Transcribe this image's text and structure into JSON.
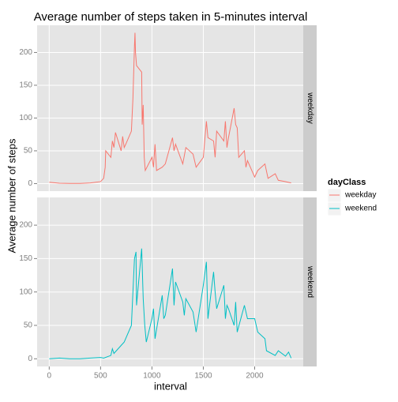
{
  "chart_data": {
    "type": "line",
    "title": "Average number of steps taken in 5-minutes interval",
    "x_label": "interval",
    "y_label": "Average number of steps",
    "legend_title": "dayClass",
    "xlim": [
      -117.75,
      2472.75
    ],
    "xticks": [
      0,
      500,
      1000,
      1500,
      2000
    ],
    "ylim": [
      -11.5,
      241.5
    ],
    "yticks": [
      0,
      50,
      100,
      150,
      200
    ],
    "grid": true,
    "legend": "right",
    "series": [
      {
        "name": "weekday",
        "color": "#F8766D",
        "x": [
          0,
          100,
          200,
          300,
          400,
          500,
          530,
          545,
          550,
          600,
          615,
          630,
          645,
          700,
          715,
          730,
          745,
          800,
          815,
          830,
          835,
          840,
          850,
          900,
          905,
          915,
          925,
          935,
          1000,
          1015,
          1030,
          1045,
          1100,
          1130,
          1200,
          1215,
          1230,
          1300,
          1330,
          1400,
          1430,
          1500,
          1530,
          1545,
          1600,
          1615,
          1630,
          1700,
          1715,
          1730,
          1745,
          1800,
          1815,
          1830,
          1845,
          1900,
          1915,
          1930,
          2000,
          2030,
          2100,
          2130,
          2200,
          2230,
          2300,
          2355
        ],
        "values": [
          2,
          0.5,
          0.3,
          0.2,
          1,
          3,
          8,
          25,
          50,
          40,
          65,
          55,
          78,
          50,
          72,
          55,
          60,
          80,
          130,
          210,
          230,
          200,
          180,
          170,
          90,
          120,
          40,
          20,
          40,
          25,
          60,
          20,
          25,
          30,
          70,
          50,
          60,
          30,
          55,
          45,
          25,
          40,
          95,
          70,
          65,
          40,
          80,
          65,
          95,
          55,
          70,
          115,
          90,
          85,
          40,
          50,
          25,
          35,
          10,
          20,
          30,
          8,
          15,
          5,
          3,
          1
        ]
      },
      {
        "name": "weekend",
        "color": "#00BFC4",
        "x": [
          0,
          100,
          200,
          300,
          400,
          500,
          530,
          600,
          615,
          630,
          700,
          730,
          800,
          815,
          830,
          845,
          850,
          900,
          915,
          930,
          945,
          1000,
          1015,
          1030,
          1100,
          1115,
          1130,
          1200,
          1215,
          1230,
          1300,
          1315,
          1330,
          1400,
          1430,
          1500,
          1530,
          1545,
          1600,
          1615,
          1630,
          1700,
          1715,
          1730,
          1745,
          1800,
          1815,
          1830,
          1900,
          1930,
          2000,
          2030,
          2100,
          2115,
          2200,
          2230,
          2300,
          2330,
          2355
        ],
        "values": [
          0,
          1,
          0,
          0,
          1,
          2,
          1,
          5,
          15,
          8,
          20,
          25,
          50,
          100,
          150,
          160,
          80,
          165,
          90,
          50,
          25,
          60,
          75,
          30,
          95,
          60,
          65,
          135,
          80,
          115,
          85,
          65,
          90,
          70,
          40,
          110,
          145,
          60,
          130,
          100,
          75,
          110,
          60,
          80,
          75,
          50,
          85,
          40,
          80,
          60,
          60,
          40,
          30,
          12,
          5,
          12,
          4,
          10,
          1
        ]
      }
    ]
  }
}
